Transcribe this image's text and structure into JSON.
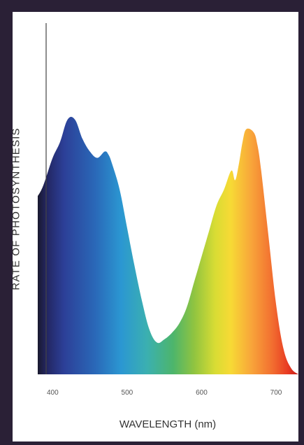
{
  "chart_data": {
    "type": "area",
    "title": "",
    "xlabel": "WAVELENGTH (nm)",
    "ylabel": "RATE OF PHOTOSYNTHESIS",
    "xlim": [
      380,
      730
    ],
    "ylim": [
      0,
      1
    ],
    "x_ticks": [
      "400",
      "500",
      "600",
      "700"
    ],
    "x_tick_values": [
      400,
      500,
      600,
      700
    ],
    "grid": false,
    "legend": "none",
    "fill": "visible spectrum gradient (violet to red)",
    "x": [
      380,
      385,
      390,
      400,
      410,
      420,
      430,
      440,
      450,
      460,
      470,
      475,
      480,
      490,
      500,
      510,
      520,
      530,
      540,
      550,
      560,
      570,
      580,
      590,
      600,
      610,
      620,
      630,
      640,
      645,
      650,
      655,
      660,
      670,
      675,
      680,
      690,
      700,
      710,
      720,
      730
    ],
    "y": [
      0.56,
      0.58,
      0.61,
      0.68,
      0.73,
      0.8,
      0.8,
      0.74,
      0.7,
      0.68,
      0.7,
      0.69,
      0.66,
      0.58,
      0.46,
      0.34,
      0.23,
      0.14,
      0.1,
      0.11,
      0.13,
      0.16,
      0.21,
      0.29,
      0.37,
      0.45,
      0.53,
      0.58,
      0.64,
      0.61,
      0.66,
      0.73,
      0.77,
      0.76,
      0.72,
      0.64,
      0.43,
      0.22,
      0.08,
      0.02,
      0.0
    ]
  }
}
